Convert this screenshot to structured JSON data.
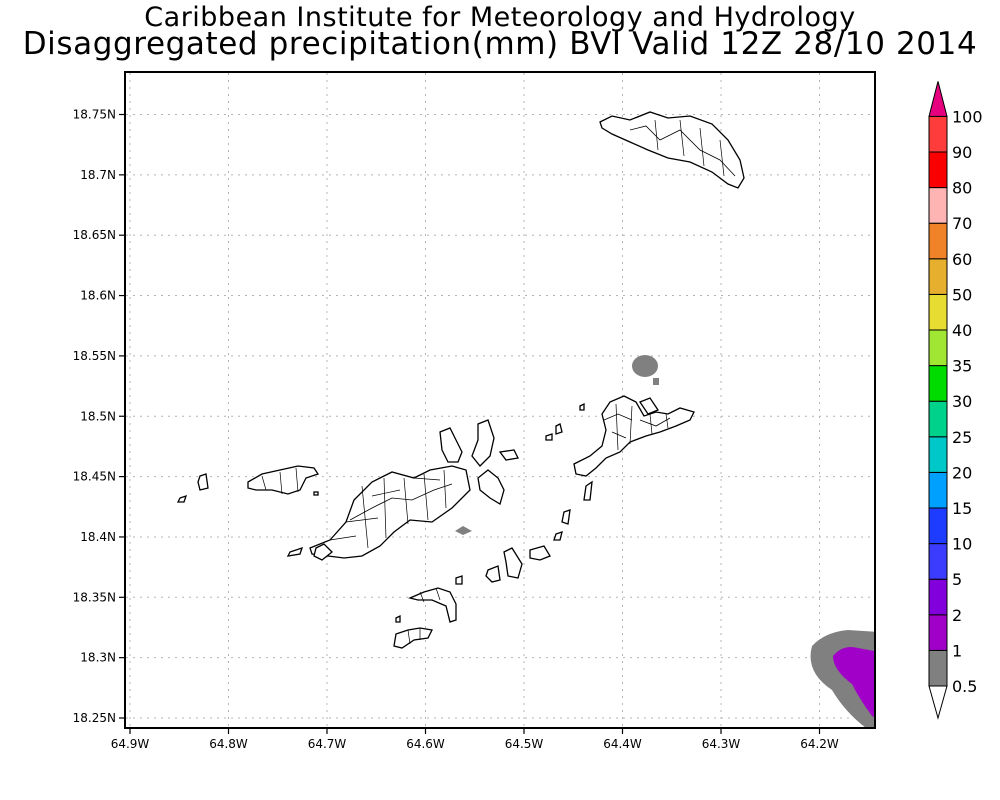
{
  "header": {
    "title_line1": "Caribbean Institute for Meteorology and Hydrology",
    "title_line2": "Disaggregated precipitation(mm) BVI Valid 12Z 28/10 2014"
  },
  "map": {
    "region": "British Virgin Islands",
    "x_ticks": [
      "64.9W",
      "64.8W",
      "64.7W",
      "64.6W",
      "64.5W",
      "64.4W",
      "64.3W",
      "64.2W"
    ],
    "y_ticks": [
      "18.25N",
      "18.3N",
      "18.35N",
      "18.4N",
      "18.45N",
      "18.5N",
      "18.55N",
      "18.6N",
      "18.65N",
      "18.7N",
      "18.75N"
    ],
    "lon_range": [
      -64.9,
      -64.14
    ],
    "lat_range": [
      18.24,
      18.795
    ],
    "grid": "dotted",
    "precip_features": [
      {
        "name": "precip-blob-north",
        "level": "1"
      },
      {
        "name": "precip-blob-central",
        "level": "1"
      },
      {
        "name": "precip-area-southeast-outer",
        "level": "1"
      },
      {
        "name": "precip-area-southeast-inner",
        "level": "2"
      }
    ]
  },
  "colorbar": {
    "levels": [
      {
        "label": "0.5",
        "color": "#ffffff"
      },
      {
        "label": "1",
        "color": "#808080"
      },
      {
        "label": "2",
        "color": "#a000c8"
      },
      {
        "label": "5",
        "color": "#8200dc"
      },
      {
        "label": "10",
        "color": "#3c3cff"
      },
      {
        "label": "15",
        "color": "#1e3cff"
      },
      {
        "label": "20",
        "color": "#00a0ff"
      },
      {
        "label": "25",
        "color": "#00c8c8"
      },
      {
        "label": "30",
        "color": "#00d28c"
      },
      {
        "label": "35",
        "color": "#00dc00"
      },
      {
        "label": "40",
        "color": "#a0e632"
      },
      {
        "label": "50",
        "color": "#e6dc32"
      },
      {
        "label": "60",
        "color": "#e6af2d"
      },
      {
        "label": "70",
        "color": "#f08228"
      },
      {
        "label": "80",
        "color": "#ffb4b4"
      },
      {
        "label": "90",
        "color": "#fa0000"
      },
      {
        "label": "100",
        "color": "#ff3c3c"
      }
    ],
    "top_arrow_color": "#e6007f",
    "bottom_arrow_color": "#ffffff"
  }
}
